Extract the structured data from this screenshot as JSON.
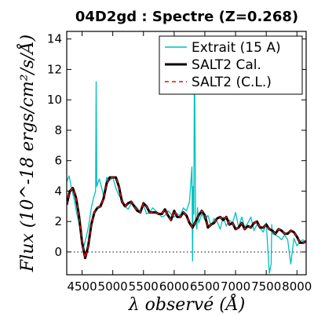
{
  "chart_data": {
    "type": "line",
    "title": "04D2gd : Spectre (Z=0.268)",
    "xlabel": "λ observé (Å)",
    "ylabel": "Flux (10^-18 ergs/cm²/s/Å)",
    "xlim": [
      4250,
      8150
    ],
    "ylim": [
      -1.5,
      14.5
    ],
    "x_ticks": [
      "4500",
      "5000",
      "5500",
      "6000",
      "6500",
      "7000",
      "7500",
      "8000"
    ],
    "x_tick_values": [
      4500,
      5000,
      5500,
      6000,
      6500,
      7000,
      7500,
      8000
    ],
    "y_ticks": [
      "0",
      "2",
      "4",
      "6",
      "8",
      "10",
      "12",
      "14"
    ],
    "y_tick_values": [
      0,
      2,
      4,
      6,
      8,
      10,
      12,
      14
    ],
    "zero_line": true,
    "legend_position": "top-right",
    "series": [
      {
        "name": "Extrait (15 A)",
        "color": "#00bfbf",
        "style": "solid",
        "x": [
          4250,
          4290,
          4330,
          4370,
          4410,
          4450,
          4490,
          4530,
          4570,
          4610,
          4650,
          4690,
          4720,
          4730,
          4740,
          4780,
          4820,
          4860,
          4900,
          4950,
          5000,
          5050,
          5100,
          5150,
          5200,
          5250,
          5300,
          5350,
          5400,
          5450,
          5500,
          5550,
          5600,
          5650,
          5700,
          5750,
          5800,
          5850,
          5900,
          5950,
          6000,
          6050,
          6100,
          6150,
          6200,
          6250,
          6290,
          6300,
          6310,
          6320,
          6330,
          6350,
          6370,
          6380,
          6390,
          6400,
          6450,
          6500,
          6550,
          6600,
          6650,
          6700,
          6750,
          6800,
          6850,
          6900,
          6950,
          7000,
          7050,
          7100,
          7150,
          7200,
          7250,
          7300,
          7350,
          7400,
          7450,
          7500,
          7550,
          7580,
          7590,
          7600,
          7650,
          7700,
          7750,
          7800,
          7850,
          7900,
          7950,
          8000,
          8050,
          8100,
          8150
        ],
        "values": [
          4.6,
          5.0,
          4.1,
          3.5,
          2.6,
          1.9,
          0.9,
          0.4,
          1.0,
          1.8,
          2.9,
          3.6,
          4.0,
          11.2,
          4.3,
          4.8,
          4.2,
          3.5,
          4.9,
          4.7,
          4.9,
          4.2,
          3.7,
          3.5,
          3.0,
          2.8,
          3.2,
          3.1,
          2.9,
          2.6,
          3.1,
          2.5,
          2.6,
          2.9,
          2.7,
          2.5,
          2.3,
          2.4,
          2.7,
          2.5,
          2.3,
          2.5,
          2.4,
          2.9,
          2.7,
          3.3,
          5.6,
          -0.6,
          4.3,
          2.5,
          13.3,
          2.0,
          1.5,
          2.9,
          2.4,
          1.9,
          2.5,
          2.1,
          2.4,
          1.7,
          2.2,
          2.0,
          1.5,
          2.3,
          1.7,
          2.1,
          1.9,
          2.6,
          1.6,
          2.3,
          1.6,
          1.9,
          2.3,
          1.4,
          1.8,
          1.6,
          1.3,
          1.9,
          -1.4,
          -0.8,
          1.8,
          1.2,
          1.1,
          1.0,
          0.8,
          1.1,
          0.8,
          -0.8,
          0.9,
          0.4,
          0.7,
          0.8,
          0.6
        ]
      },
      {
        "name": "SALT2 Cal.",
        "color": "#000000",
        "style": "solid",
        "x": [
          4250,
          4300,
          4350,
          4400,
          4450,
          4500,
          4550,
          4600,
          4650,
          4700,
          4750,
          4800,
          4850,
          4900,
          4950,
          5000,
          5050,
          5100,
          5150,
          5200,
          5250,
          5300,
          5350,
          5400,
          5450,
          5500,
          5550,
          5600,
          5650,
          5700,
          5750,
          5800,
          5850,
          5900,
          5950,
          6000,
          6050,
          6100,
          6150,
          6200,
          6250,
          6300,
          6350,
          6400,
          6450,
          6500,
          6550,
          6600,
          6650,
          6700,
          6750,
          6800,
          6850,
          6900,
          6950,
          7000,
          7050,
          7100,
          7150,
          7200,
          7250,
          7300,
          7350,
          7400,
          7450,
          7500,
          7550,
          7600,
          7650,
          7700,
          7750,
          7800,
          7850,
          7900,
          7950,
          8000,
          8050,
          8100,
          8150
        ],
        "values": [
          3.1,
          4.0,
          4.2,
          3.6,
          2.4,
          0.6,
          -0.4,
          0.4,
          1.8,
          2.6,
          2.9,
          3.0,
          3.5,
          4.5,
          4.9,
          4.9,
          4.9,
          4.3,
          3.3,
          3.0,
          3.2,
          3.3,
          3.0,
          2.7,
          2.6,
          3.2,
          3.0,
          2.6,
          2.6,
          2.6,
          2.5,
          2.5,
          2.8,
          2.4,
          2.1,
          2.7,
          2.3,
          2.3,
          2.6,
          2.4,
          1.9,
          1.6,
          2.0,
          2.4,
          2.7,
          2.4,
          1.6,
          1.8,
          1.9,
          2.2,
          2.3,
          2.1,
          2.3,
          1.8,
          1.9,
          1.5,
          1.6,
          1.9,
          1.5,
          1.7,
          1.6,
          1.9,
          2.0,
          1.6,
          1.6,
          1.8,
          1.5,
          1.4,
          1.2,
          1.5,
          1.4,
          1.2,
          1.2,
          1.4,
          1.3,
          1.0,
          0.6,
          0.6,
          0.7
        ]
      },
      {
        "name": "SALT2 (C.L.)",
        "color": "#ff0000",
        "style": "dashed",
        "x": [
          4250,
          4300,
          4350,
          4400,
          4450,
          4500,
          4550,
          4600,
          4650,
          4700,
          4750,
          4800,
          4850,
          4900,
          4950,
          5000,
          5050,
          5100,
          5150,
          5200,
          5250,
          5300,
          5350,
          5400,
          5450,
          5500,
          5550,
          5600,
          5650,
          5700,
          5750,
          5800,
          5850,
          5900,
          5950,
          6000,
          6050,
          6100,
          6150,
          6200,
          6250,
          6300,
          6350,
          6400,
          6450,
          6500,
          6550,
          6600,
          6650,
          6700,
          6750,
          6800,
          6850,
          6900,
          6950,
          7000,
          7050,
          7100,
          7150,
          7200,
          7250,
          7300,
          7350,
          7400,
          7450,
          7500,
          7550,
          7600,
          7650,
          7700,
          7750,
          7800,
          7850,
          7900,
          7950,
          8000,
          8050,
          8100,
          8150
        ],
        "values": [
          3.1,
          4.0,
          4.2,
          3.6,
          2.4,
          0.6,
          -0.4,
          0.4,
          1.8,
          2.6,
          2.9,
          3.0,
          3.5,
          4.5,
          4.9,
          4.9,
          4.9,
          4.3,
          3.3,
          3.0,
          3.2,
          3.3,
          3.0,
          2.7,
          2.6,
          3.2,
          3.0,
          2.6,
          2.6,
          2.6,
          2.5,
          2.5,
          2.8,
          2.4,
          2.1,
          2.7,
          2.3,
          2.3,
          2.6,
          2.4,
          1.9,
          1.6,
          2.0,
          2.4,
          2.7,
          2.4,
          1.6,
          1.8,
          1.9,
          2.2,
          2.3,
          2.1,
          2.3,
          1.8,
          1.9,
          1.5,
          1.6,
          1.9,
          1.5,
          1.7,
          1.6,
          1.9,
          2.0,
          1.6,
          1.6,
          1.8,
          1.5,
          1.4,
          1.2,
          1.5,
          1.4,
          1.2,
          1.2,
          1.4,
          1.3,
          1.0,
          0.6,
          0.6,
          0.7
        ]
      }
    ]
  }
}
